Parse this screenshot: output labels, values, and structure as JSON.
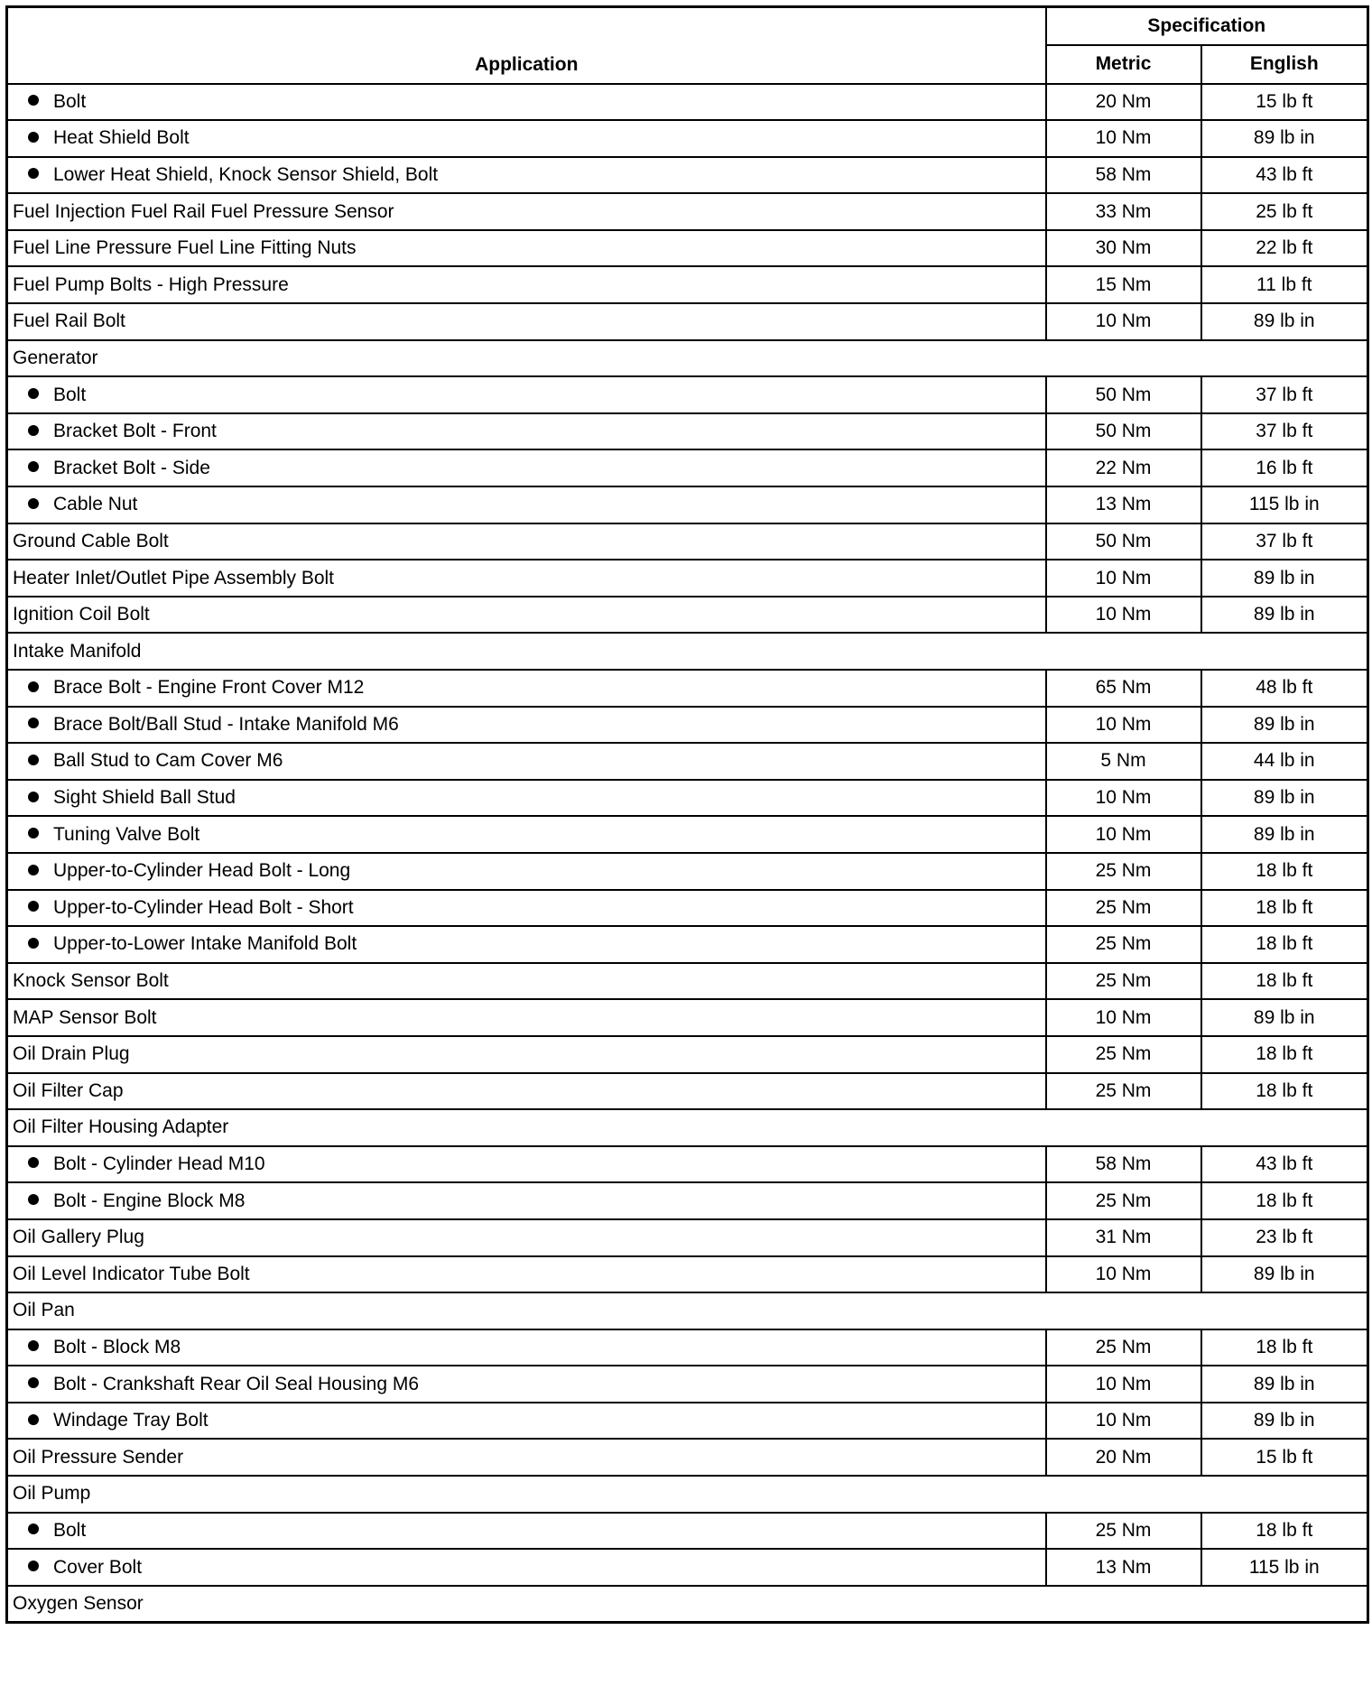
{
  "header": {
    "application": "Application",
    "specification": "Specification",
    "metric": "Metric",
    "english": "English"
  },
  "rows": [
    {
      "label": "Bolt",
      "sub": true,
      "metric": "20 Nm",
      "english": "15 lb ft"
    },
    {
      "label": "Heat Shield Bolt",
      "sub": true,
      "metric": "10 Nm",
      "english": "89 lb in"
    },
    {
      "label": "Lower Heat Shield, Knock Sensor Shield, Bolt",
      "sub": true,
      "metric": "58 Nm",
      "english": "43 lb ft"
    },
    {
      "label": "Fuel Injection Fuel Rail Fuel Pressure Sensor",
      "metric": "33 Nm",
      "english": "25 lb ft"
    },
    {
      "label": "Fuel Line Pressure Fuel Line Fitting Nuts",
      "metric": "30 Nm",
      "english": "22 lb ft"
    },
    {
      "label": "Fuel Pump Bolts - High Pressure",
      "metric": "15 Nm",
      "english": "11 lb ft"
    },
    {
      "label": "Fuel Rail Bolt",
      "metric": "10 Nm",
      "english": "89 lb in"
    },
    {
      "label": "Generator",
      "group": true
    },
    {
      "label": "Bolt",
      "sub": true,
      "metric": "50 Nm",
      "english": "37 lb ft"
    },
    {
      "label": "Bracket Bolt - Front",
      "sub": true,
      "metric": "50 Nm",
      "english": "37 lb ft"
    },
    {
      "label": "Bracket Bolt - Side",
      "sub": true,
      "metric": "22 Nm",
      "english": "16 lb ft"
    },
    {
      "label": "Cable Nut",
      "sub": true,
      "metric": "13 Nm",
      "english": "115 lb in"
    },
    {
      "label": "Ground Cable Bolt",
      "metric": "50 Nm",
      "english": "37 lb ft"
    },
    {
      "label": "Heater Inlet/Outlet Pipe Assembly Bolt",
      "metric": "10 Nm",
      "english": "89 lb in"
    },
    {
      "label": "Ignition Coil Bolt",
      "metric": "10 Nm",
      "english": "89 lb in"
    },
    {
      "label": "Intake Manifold",
      "group": true
    },
    {
      "label": "Brace Bolt - Engine Front Cover M12",
      "sub": true,
      "metric": "65 Nm",
      "english": "48 lb ft"
    },
    {
      "label": "Brace Bolt/Ball Stud - Intake Manifold M6",
      "sub": true,
      "metric": "10 Nm",
      "english": "89 lb in"
    },
    {
      "label": "Ball Stud to Cam Cover M6",
      "sub": true,
      "metric": "5 Nm",
      "english": "44 lb in"
    },
    {
      "label": "Sight Shield Ball Stud",
      "sub": true,
      "metric": "10 Nm",
      "english": "89 lb in"
    },
    {
      "label": "Tuning Valve Bolt",
      "sub": true,
      "metric": "10 Nm",
      "english": "89 lb in"
    },
    {
      "label": "Upper-to-Cylinder Head Bolt - Long",
      "sub": true,
      "metric": "25 Nm",
      "english": "18 lb ft"
    },
    {
      "label": "Upper-to-Cylinder Head Bolt - Short",
      "sub": true,
      "metric": "25 Nm",
      "english": "18 lb ft"
    },
    {
      "label": "Upper-to-Lower Intake Manifold Bolt",
      "sub": true,
      "metric": "25 Nm",
      "english": "18 lb ft"
    },
    {
      "label": "Knock Sensor Bolt",
      "metric": "25 Nm",
      "english": "18 lb ft"
    },
    {
      "label": "MAP Sensor Bolt",
      "metric": "10 Nm",
      "english": "89 lb in"
    },
    {
      "label": "Oil Drain Plug",
      "metric": "25 Nm",
      "english": "18 lb ft"
    },
    {
      "label": "Oil Filter Cap",
      "metric": "25 Nm",
      "english": "18 lb ft"
    },
    {
      "label": "Oil Filter Housing Adapter",
      "group": true
    },
    {
      "label": "Bolt - Cylinder Head M10",
      "sub": true,
      "metric": "58 Nm",
      "english": "43 lb ft"
    },
    {
      "label": "Bolt - Engine Block M8",
      "sub": true,
      "metric": "25 Nm",
      "english": "18 lb ft"
    },
    {
      "label": "Oil Gallery Plug",
      "metric": "31 Nm",
      "english": "23 lb ft"
    },
    {
      "label": "Oil Level Indicator Tube Bolt",
      "metric": "10 Nm",
      "english": "89 lb in"
    },
    {
      "label": "Oil Pan",
      "group": true
    },
    {
      "label": "Bolt - Block M8",
      "sub": true,
      "metric": "25 Nm",
      "english": "18 lb ft"
    },
    {
      "label": "Bolt - Crankshaft Rear Oil Seal Housing M6",
      "sub": true,
      "metric": "10 Nm",
      "english": "89 lb in"
    },
    {
      "label": "Windage Tray Bolt",
      "sub": true,
      "metric": "10 Nm",
      "english": "89 lb in"
    },
    {
      "label": "Oil Pressure Sender",
      "metric": "20 Nm",
      "english": "15 lb ft"
    },
    {
      "label": "Oil Pump",
      "group": true
    },
    {
      "label": "Bolt",
      "sub": true,
      "metric": "25 Nm",
      "english": "18 lb ft"
    },
    {
      "label": "Cover Bolt",
      "sub": true,
      "metric": "13 Nm",
      "english": "115 lb in"
    },
    {
      "label": "Oxygen Sensor",
      "group": true
    }
  ]
}
